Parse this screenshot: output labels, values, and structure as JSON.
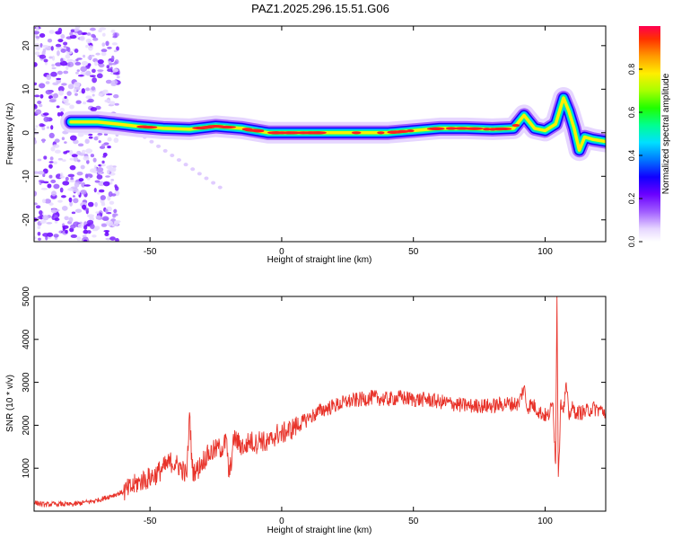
{
  "title": "PAZ1.2025.296.15.51.G06",
  "chart_data": [
    {
      "type": "heatmap",
      "xlabel": "Height of straight line (km)",
      "ylabel": "Frequency (Hz)",
      "xlim": [
        -94,
        123
      ],
      "ylim": [
        -25,
        24.5
      ],
      "xticks": [
        -50,
        0,
        50,
        100
      ],
      "yticks": [
        -20,
        -10,
        0,
        10,
        20
      ],
      "colorbar": {
        "label": "Normalized spectral amplitude",
        "range": [
          0,
          1
        ],
        "ticks": [
          "0.0",
          "0.2",
          "0.4",
          "0.6",
          "0.8"
        ]
      },
      "ridge": {
        "x": [
          -80,
          -70,
          -62,
          -55,
          -45,
          -35,
          -25,
          -15,
          -5,
          0,
          10,
          20,
          30,
          40,
          50,
          60,
          70,
          80,
          88,
          92,
          96,
          100,
          104,
          107,
          109,
          111,
          113,
          115,
          118,
          123
        ],
        "y": [
          2.5,
          2.5,
          2,
          1.5,
          1,
          0.8,
          1.5,
          1,
          0,
          0,
          0,
          0,
          0,
          0,
          0.5,
          1,
          1,
          0.8,
          1,
          4,
          1,
          0.5,
          2,
          8,
          5,
          1,
          -4,
          -1,
          -1.5,
          -2
        ]
      }
    },
    {
      "type": "line",
      "xlabel": "Height of straight line (km)",
      "ylabel": "SNR (10 * v/v)",
      "xlim": [
        -94,
        123
      ],
      "ylim": [
        0,
        5000
      ],
      "xticks": [
        -50,
        0,
        50,
        100
      ],
      "yticks": [
        1000,
        2000,
        3000,
        4000,
        5000
      ],
      "x": [
        -94,
        -90,
        -85,
        -80,
        -75,
        -70,
        -65,
        -60,
        -57,
        -54,
        -51,
        -48,
        -45,
        -42,
        -40,
        -38,
        -36,
        -35,
        -34,
        -33,
        -32,
        -30,
        -28,
        -26,
        -24,
        -22,
        -21,
        -20,
        -18,
        -16,
        -14,
        -12,
        -10,
        -8,
        -6,
        -4,
        -2,
        0,
        5,
        10,
        15,
        20,
        25,
        30,
        35,
        40,
        45,
        50,
        55,
        60,
        65,
        70,
        75,
        80,
        85,
        90,
        92,
        93,
        95,
        98,
        101,
        103,
        104,
        104.5,
        105,
        106,
        107,
        108,
        109,
        110,
        112,
        115,
        118,
        121,
        123
      ],
      "y": [
        200,
        150,
        170,
        150,
        200,
        250,
        350,
        450,
        550,
        700,
        750,
        850,
        1000,
        1150,
        1100,
        1000,
        800,
        2300,
        1000,
        900,
        950,
        1200,
        1300,
        1400,
        1450,
        1500,
        1700,
        800,
        1700,
        1550,
        1500,
        1650,
        1550,
        1700,
        1550,
        1650,
        1800,
        1800,
        1950,
        2150,
        2350,
        2450,
        2550,
        2600,
        2650,
        2600,
        2650,
        2600,
        2600,
        2550,
        2500,
        2450,
        2450,
        2450,
        2500,
        2500,
        2900,
        2400,
        2500,
        2300,
        2200,
        2500,
        1100,
        5000,
        800,
        2600,
        2300,
        3000,
        2200,
        2400,
        2300,
        2300,
        2400,
        2350,
        2300
      ]
    }
  ]
}
